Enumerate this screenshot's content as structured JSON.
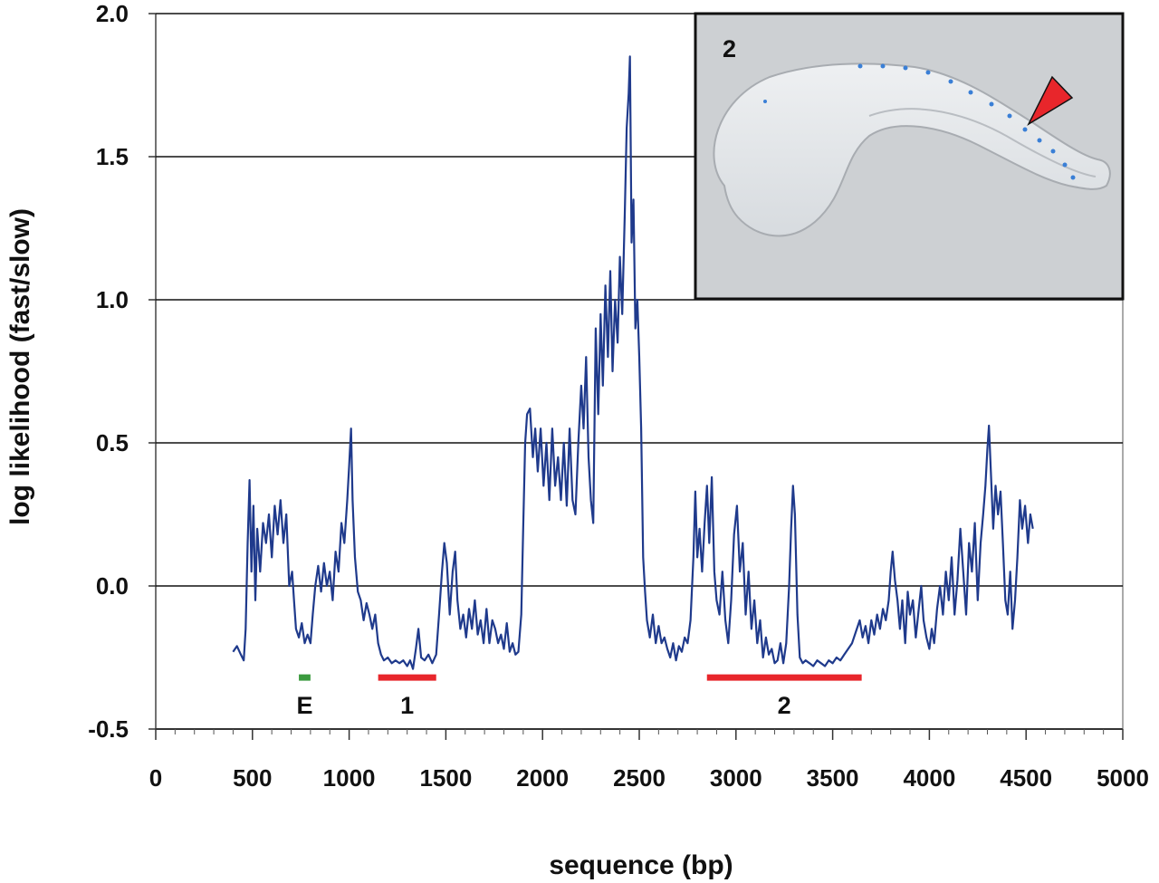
{
  "chart_data": {
    "type": "line",
    "title": "",
    "xlabel": "sequence (bp)",
    "ylabel": "log likelihood (fast/slow)",
    "xlim": [
      0,
      5000
    ],
    "ylim": [
      -0.5,
      2.0
    ],
    "x_ticks": [
      "0",
      "500",
      "1000",
      "1500",
      "2000",
      "2500",
      "3000",
      "3500",
      "4000",
      "4500",
      "5000"
    ],
    "y_ticks": [
      "-0.5",
      "0.0",
      "0.5",
      "1.0",
      "1.5",
      "2.0"
    ],
    "grid": "horizontal",
    "colors": {
      "line": "#1f3a8c",
      "region_red": "#e8262b",
      "region_green": "#3b9a3e",
      "inset_arrow": "#e8262b"
    },
    "series": [
      {
        "values": [
          [
            400,
            -0.23
          ],
          [
            420,
            -0.21
          ],
          [
            440,
            -0.24
          ],
          [
            455,
            -0.26
          ],
          [
            465,
            -0.15
          ],
          [
            475,
            0.15
          ],
          [
            485,
            0.37
          ],
          [
            495,
            0.05
          ],
          [
            505,
            0.28
          ],
          [
            515,
            -0.05
          ],
          [
            525,
            0.2
          ],
          [
            540,
            0.05
          ],
          [
            555,
            0.22
          ],
          [
            570,
            0.15
          ],
          [
            585,
            0.25
          ],
          [
            600,
            0.1
          ],
          [
            615,
            0.28
          ],
          [
            630,
            0.18
          ],
          [
            645,
            0.3
          ],
          [
            660,
            0.15
          ],
          [
            675,
            0.25
          ],
          [
            690,
            0.0
          ],
          [
            705,
            0.05
          ],
          [
            715,
            -0.05
          ],
          [
            725,
            -0.15
          ],
          [
            740,
            -0.18
          ],
          [
            755,
            -0.13
          ],
          [
            770,
            -0.2
          ],
          [
            785,
            -0.17
          ],
          [
            800,
            -0.2
          ],
          [
            812,
            -0.1
          ],
          [
            825,
            0.0
          ],
          [
            840,
            0.07
          ],
          [
            855,
            -0.02
          ],
          [
            870,
            0.08
          ],
          [
            885,
            0.0
          ],
          [
            900,
            0.05
          ],
          [
            915,
            -0.05
          ],
          [
            930,
            0.12
          ],
          [
            945,
            0.05
          ],
          [
            960,
            0.22
          ],
          [
            975,
            0.15
          ],
          [
            990,
            0.3
          ],
          [
            1000,
            0.42
          ],
          [
            1010,
            0.55
          ],
          [
            1018,
            0.3
          ],
          [
            1030,
            0.1
          ],
          [
            1045,
            -0.02
          ],
          [
            1060,
            -0.05
          ],
          [
            1075,
            -0.12
          ],
          [
            1090,
            -0.06
          ],
          [
            1105,
            -0.1
          ],
          [
            1120,
            -0.15
          ],
          [
            1135,
            -0.1
          ],
          [
            1150,
            -0.2
          ],
          [
            1165,
            -0.24
          ],
          [
            1180,
            -0.26
          ],
          [
            1200,
            -0.25
          ],
          [
            1220,
            -0.27
          ],
          [
            1240,
            -0.26
          ],
          [
            1260,
            -0.27
          ],
          [
            1280,
            -0.26
          ],
          [
            1300,
            -0.28
          ],
          [
            1315,
            -0.26
          ],
          [
            1330,
            -0.29
          ],
          [
            1345,
            -0.22
          ],
          [
            1358,
            -0.15
          ],
          [
            1372,
            -0.25
          ],
          [
            1390,
            -0.26
          ],
          [
            1410,
            -0.24
          ],
          [
            1430,
            -0.27
          ],
          [
            1450,
            -0.24
          ],
          [
            1465,
            -0.1
          ],
          [
            1480,
            0.05
          ],
          [
            1492,
            0.15
          ],
          [
            1505,
            0.08
          ],
          [
            1520,
            -0.1
          ],
          [
            1535,
            0.05
          ],
          [
            1548,
            0.12
          ],
          [
            1560,
            -0.05
          ],
          [
            1575,
            -0.15
          ],
          [
            1590,
            -0.1
          ],
          [
            1605,
            -0.18
          ],
          [
            1620,
            -0.08
          ],
          [
            1635,
            -0.15
          ],
          [
            1650,
            -0.05
          ],
          [
            1665,
            -0.17
          ],
          [
            1680,
            -0.12
          ],
          [
            1695,
            -0.2
          ],
          [
            1710,
            -0.08
          ],
          [
            1725,
            -0.2
          ],
          [
            1740,
            -0.12
          ],
          [
            1755,
            -0.15
          ],
          [
            1770,
            -0.2
          ],
          [
            1785,
            -0.17
          ],
          [
            1800,
            -0.22
          ],
          [
            1815,
            -0.13
          ],
          [
            1830,
            -0.23
          ],
          [
            1845,
            -0.2
          ],
          [
            1860,
            -0.24
          ],
          [
            1875,
            -0.23
          ],
          [
            1890,
            -0.1
          ],
          [
            1900,
            0.2
          ],
          [
            1910,
            0.5
          ],
          [
            1920,
            0.6
          ],
          [
            1935,
            0.62
          ],
          [
            1950,
            0.45
          ],
          [
            1962,
            0.55
          ],
          [
            1975,
            0.4
          ],
          [
            1990,
            0.55
          ],
          [
            2005,
            0.35
          ],
          [
            2020,
            0.5
          ],
          [
            2035,
            0.3
          ],
          [
            2050,
            0.55
          ],
          [
            2065,
            0.35
          ],
          [
            2080,
            0.45
          ],
          [
            2095,
            0.3
          ],
          [
            2110,
            0.5
          ],
          [
            2125,
            0.28
          ],
          [
            2140,
            0.55
          ],
          [
            2155,
            0.3
          ],
          [
            2170,
            0.25
          ],
          [
            2185,
            0.5
          ],
          [
            2200,
            0.7
          ],
          [
            2212,
            0.55
          ],
          [
            2225,
            0.8
          ],
          [
            2238,
            0.45
          ],
          [
            2250,
            0.3
          ],
          [
            2262,
            0.22
          ],
          [
            2275,
            0.9
          ],
          [
            2288,
            0.6
          ],
          [
            2300,
            0.95
          ],
          [
            2312,
            0.7
          ],
          [
            2325,
            1.05
          ],
          [
            2338,
            0.8
          ],
          [
            2350,
            1.1
          ],
          [
            2362,
            0.75
          ],
          [
            2375,
            1.0
          ],
          [
            2388,
            0.85
          ],
          [
            2400,
            1.15
          ],
          [
            2412,
            0.95
          ],
          [
            2425,
            1.3
          ],
          [
            2435,
            1.6
          ],
          [
            2445,
            1.72
          ],
          [
            2452,
            1.85
          ],
          [
            2460,
            1.2
          ],
          [
            2470,
            1.35
          ],
          [
            2480,
            0.9
          ],
          [
            2490,
            1.0
          ],
          [
            2500,
            0.8
          ],
          [
            2510,
            0.55
          ],
          [
            2520,
            0.1
          ],
          [
            2530,
            -0.02
          ],
          [
            2540,
            -0.12
          ],
          [
            2555,
            -0.18
          ],
          [
            2570,
            -0.1
          ],
          [
            2585,
            -0.2
          ],
          [
            2600,
            -0.14
          ],
          [
            2615,
            -0.2
          ],
          [
            2630,
            -0.18
          ],
          [
            2645,
            -0.22
          ],
          [
            2660,
            -0.25
          ],
          [
            2675,
            -0.2
          ],
          [
            2690,
            -0.26
          ],
          [
            2705,
            -0.21
          ],
          [
            2720,
            -0.23
          ],
          [
            2735,
            -0.18
          ],
          [
            2750,
            -0.2
          ],
          [
            2765,
            -0.12
          ],
          [
            2780,
            0.1
          ],
          [
            2790,
            0.33
          ],
          [
            2800,
            0.1
          ],
          [
            2812,
            0.2
          ],
          [
            2825,
            0.05
          ],
          [
            2838,
            0.22
          ],
          [
            2850,
            0.35
          ],
          [
            2862,
            0.15
          ],
          [
            2875,
            0.38
          ],
          [
            2888,
            0.05
          ],
          [
            2900,
            -0.05
          ],
          [
            2915,
            -0.1
          ],
          [
            2930,
            0.05
          ],
          [
            2945,
            -0.12
          ],
          [
            2960,
            -0.2
          ],
          [
            2975,
            -0.05
          ],
          [
            2990,
            0.18
          ],
          [
            3005,
            0.28
          ],
          [
            3020,
            0.05
          ],
          [
            3035,
            0.15
          ],
          [
            3050,
            -0.1
          ],
          [
            3065,
            0.05
          ],
          [
            3080,
            -0.15
          ],
          [
            3095,
            -0.05
          ],
          [
            3110,
            -0.2
          ],
          [
            3125,
            -0.12
          ],
          [
            3140,
            -0.25
          ],
          [
            3155,
            -0.18
          ],
          [
            3170,
            -0.24
          ],
          [
            3185,
            -0.22
          ],
          [
            3200,
            -0.27
          ],
          [
            3215,
            -0.26
          ],
          [
            3230,
            -0.2
          ],
          [
            3245,
            -0.27
          ],
          [
            3260,
            -0.2
          ],
          [
            3275,
            0.0
          ],
          [
            3285,
            0.2
          ],
          [
            3295,
            0.35
          ],
          [
            3305,
            0.25
          ],
          [
            3318,
            -0.1
          ],
          [
            3330,
            -0.25
          ],
          [
            3345,
            -0.27
          ],
          [
            3360,
            -0.26
          ],
          [
            3380,
            -0.27
          ],
          [
            3400,
            -0.28
          ],
          [
            3420,
            -0.26
          ],
          [
            3440,
            -0.27
          ],
          [
            3460,
            -0.28
          ],
          [
            3480,
            -0.26
          ],
          [
            3500,
            -0.27
          ],
          [
            3520,
            -0.25
          ],
          [
            3540,
            -0.26
          ],
          [
            3560,
            -0.24
          ],
          [
            3580,
            -0.22
          ],
          [
            3600,
            -0.2
          ],
          [
            3620,
            -0.16
          ],
          [
            3640,
            -0.12
          ],
          [
            3655,
            -0.18
          ],
          [
            3670,
            -0.14
          ],
          [
            3685,
            -0.2
          ],
          [
            3700,
            -0.12
          ],
          [
            3715,
            -0.17
          ],
          [
            3730,
            -0.1
          ],
          [
            3745,
            -0.15
          ],
          [
            3760,
            -0.08
          ],
          [
            3775,
            -0.12
          ],
          [
            3790,
            -0.05
          ],
          [
            3800,
            0.05
          ],
          [
            3810,
            0.12
          ],
          [
            3822,
            0.02
          ],
          [
            3835,
            -0.05
          ],
          [
            3848,
            -0.15
          ],
          [
            3860,
            -0.05
          ],
          [
            3875,
            -0.2
          ],
          [
            3888,
            -0.02
          ],
          [
            3900,
            -0.1
          ],
          [
            3915,
            -0.05
          ],
          [
            3930,
            -0.18
          ],
          [
            3945,
            -0.08
          ],
          [
            3958,
            0.0
          ],
          [
            3970,
            -0.12
          ],
          [
            3985,
            -0.18
          ],
          [
            4000,
            -0.22
          ],
          [
            4012,
            -0.15
          ],
          [
            4025,
            -0.2
          ],
          [
            4040,
            -0.08
          ],
          [
            4055,
            0.0
          ],
          [
            4070,
            -0.1
          ],
          [
            4085,
            0.05
          ],
          [
            4100,
            -0.05
          ],
          [
            4115,
            0.1
          ],
          [
            4130,
            -0.1
          ],
          [
            4145,
            0.02
          ],
          [
            4160,
            0.2
          ],
          [
            4175,
            0.05
          ],
          [
            4190,
            -0.1
          ],
          [
            4205,
            0.15
          ],
          [
            4220,
            0.05
          ],
          [
            4235,
            0.22
          ],
          [
            4250,
            -0.05
          ],
          [
            4265,
            0.15
          ],
          [
            4278,
            0.25
          ],
          [
            4290,
            0.35
          ],
          [
            4300,
            0.48
          ],
          [
            4308,
            0.56
          ],
          [
            4318,
            0.4
          ],
          [
            4330,
            0.2
          ],
          [
            4342,
            0.35
          ],
          [
            4355,
            0.25
          ],
          [
            4368,
            0.33
          ],
          [
            4380,
            0.15
          ],
          [
            4393,
            -0.05
          ],
          [
            4405,
            -0.1
          ],
          [
            4418,
            0.05
          ],
          [
            4430,
            -0.15
          ],
          [
            4443,
            -0.05
          ],
          [
            4455,
            0.1
          ],
          [
            4468,
            0.3
          ],
          [
            4480,
            0.2
          ],
          [
            4495,
            0.28
          ],
          [
            4510,
            0.15
          ],
          [
            4522,
            0.25
          ],
          [
            4535,
            0.2
          ]
        ]
      }
    ],
    "annotations": [
      {
        "label": "E",
        "x_start": 740,
        "x_end": 800,
        "y": -0.32,
        "color": "green"
      },
      {
        "label": "1",
        "x_start": 1150,
        "x_end": 1450,
        "y": -0.32,
        "color": "red"
      },
      {
        "label": "2",
        "x_start": 2850,
        "x_end": 3650,
        "y": -0.32,
        "color": "red"
      }
    ],
    "inset": {
      "label": "2"
    }
  }
}
